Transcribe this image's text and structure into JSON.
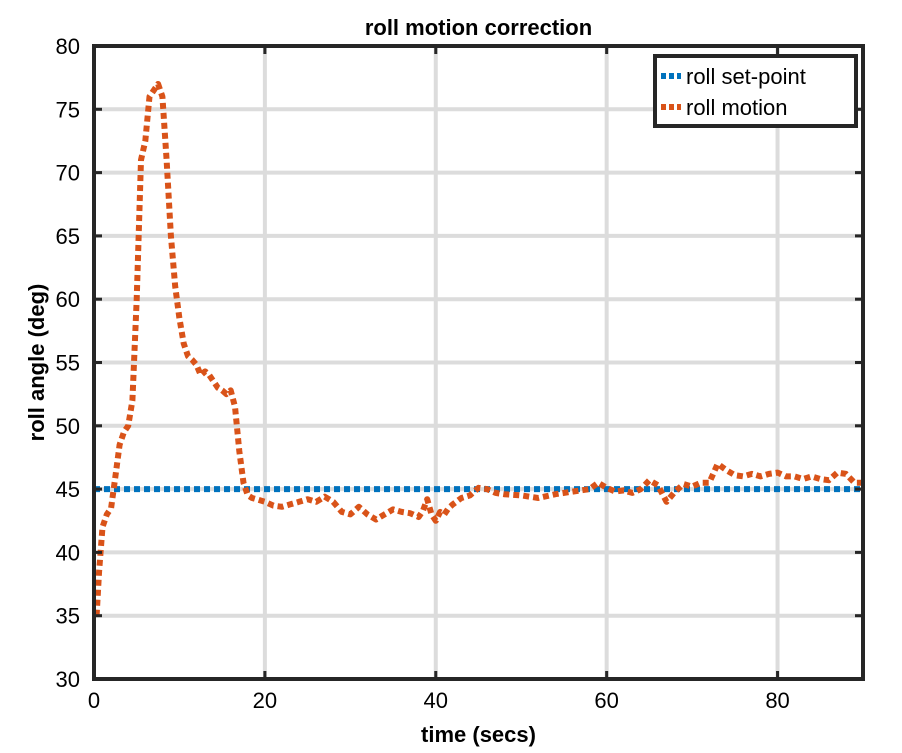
{
  "chart_data": {
    "type": "line",
    "title": "roll motion correction",
    "xlabel": "time (secs)",
    "ylabel": "roll angle (deg)",
    "xlim": [
      0,
      90
    ],
    "ylim": [
      30,
      80
    ],
    "xticks": [
      0,
      20,
      40,
      60,
      80
    ],
    "yticks": [
      30,
      35,
      40,
      45,
      50,
      55,
      60,
      65,
      70,
      75,
      80
    ],
    "grid": true,
    "legend_position": "top-right",
    "series": [
      {
        "name": "roll set-point",
        "color": "#0072BD",
        "style": "dotted",
        "x": [
          0,
          90
        ],
        "y": [
          45,
          45
        ]
      },
      {
        "name": "roll motion",
        "color": "#D95319",
        "style": "dotted",
        "x": [
          0.3,
          0.6,
          1.0,
          1.5,
          2.0,
          2.5,
          3.0,
          3.5,
          4.0,
          4.5,
          5.0,
          5.5,
          6.0,
          6.5,
          7.0,
          7.5,
          8.0,
          8.5,
          9.0,
          9.5,
          10.0,
          10.5,
          11.0,
          11.5,
          12.0,
          12.5,
          13.0,
          13.5,
          14.0,
          14.5,
          15.0,
          15.5,
          16.0,
          16.5,
          17.0,
          17.5,
          18.0,
          18.5,
          19.0,
          20.0,
          21.0,
          22.0,
          23.0,
          24.0,
          25.0,
          26.0,
          27.0,
          28.0,
          29.0,
          30.0,
          31.0,
          32.0,
          33.0,
          34.0,
          35.0,
          36.0,
          37.0,
          38.0,
          38.5,
          39.0,
          39.5,
          40.0,
          40.5,
          41.0,
          41.5,
          42.0,
          43.0,
          44.0,
          45.0,
          46.0,
          47.0,
          48.0,
          50.0,
          52.0,
          54.0,
          56.0,
          58.0,
          59.0,
          60.0,
          61.0,
          62.0,
          63.0,
          64.0,
          65.0,
          66.0,
          67.0,
          68.0,
          69.0,
          70.0,
          71.0,
          72.0,
          73.0,
          74.0,
          75.0,
          76.0,
          77.0,
          78.0,
          79.0,
          80.0,
          81.0,
          82.0,
          83.0,
          84.0,
          85.0,
          86.0,
          87.0,
          88.0,
          89.0,
          90.0
        ],
        "y": [
          35.0,
          38.5,
          42.0,
          43.0,
          43.5,
          46.0,
          48.5,
          49.5,
          50.0,
          52.0,
          60.0,
          71.0,
          72.5,
          76.0,
          76.5,
          77.0,
          76.0,
          71.0,
          65.0,
          61.0,
          58.5,
          56.5,
          55.5,
          55.2,
          54.8,
          54.0,
          54.3,
          54.0,
          53.5,
          53.0,
          52.8,
          52.5,
          52.8,
          51.5,
          48.0,
          45.5,
          44.5,
          44.3,
          44.2,
          44.0,
          43.7,
          43.6,
          43.8,
          44.0,
          44.2,
          44.0,
          44.4,
          44.0,
          43.2,
          43.0,
          43.6,
          43.0,
          42.6,
          43.0,
          43.4,
          43.2,
          43.1,
          42.8,
          43.3,
          44.2,
          43.0,
          42.5,
          43.2,
          43.0,
          43.5,
          43.8,
          44.3,
          44.5,
          45.1,
          45.0,
          44.7,
          44.6,
          44.5,
          44.3,
          44.6,
          44.8,
          45.0,
          45.5,
          45.1,
          44.8,
          44.9,
          44.7,
          45.0,
          45.7,
          45.3,
          44.0,
          44.8,
          45.4,
          45.2,
          45.5,
          45.5,
          47.0,
          46.5,
          46.1,
          46.0,
          46.2,
          46.0,
          46.2,
          46.3,
          46.0,
          46.0,
          45.8,
          46.0,
          45.8,
          45.7,
          46.3,
          46.2,
          45.5,
          45.5
        ]
      }
    ]
  }
}
